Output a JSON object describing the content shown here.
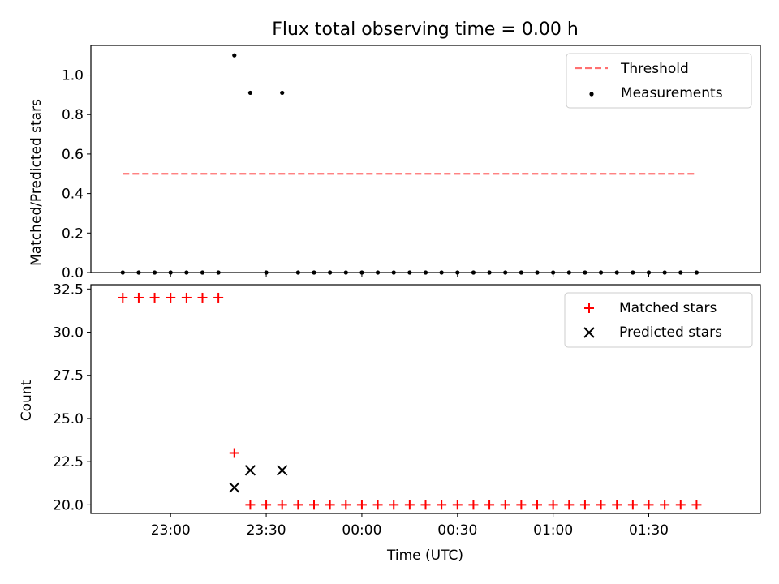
{
  "chart_data": [
    {
      "type": "scatter",
      "title": "Flux total observing time = 0.00 h",
      "ylabel": "Matched/Predicted stars",
      "xlabel": "",
      "xlim": [
        "22:35",
        "02:05"
      ],
      "ylim": [
        0,
        1.15
      ],
      "yticks": [
        "0.0",
        "0.2",
        "0.4",
        "0.6",
        "0.8",
        "1.0"
      ],
      "legend_position": "top-right",
      "grid": false,
      "series": [
        {
          "name": "Threshold",
          "style": "dashed-line",
          "color": "#ff7070",
          "x": [
            "22:45",
            "01:45"
          ],
          "y": [
            0.5,
            0.5
          ]
        },
        {
          "name": "Measurements",
          "style": "dot",
          "color": "#000000",
          "x": [
            "22:45",
            "22:50",
            "22:55",
            "23:00",
            "23:05",
            "23:10",
            "23:15",
            "23:20",
            "23:25",
            "23:30",
            "23:35",
            "23:40",
            "23:45",
            "23:50",
            "23:55",
            "00:00",
            "00:05",
            "00:10",
            "00:15",
            "00:20",
            "00:25",
            "00:30",
            "00:35",
            "00:40",
            "00:45",
            "00:50",
            "00:55",
            "01:00",
            "01:05",
            "01:10",
            "01:15",
            "01:20",
            "01:25",
            "01:30",
            "01:35",
            "01:40",
            "01:45"
          ],
          "y": [
            0,
            0,
            0,
            0,
            0,
            0,
            0,
            1.1,
            0.91,
            0,
            0.91,
            0,
            0,
            0,
            0,
            0,
            0,
            0,
            0,
            0,
            0,
            0,
            0,
            0,
            0,
            0,
            0,
            0,
            0,
            0,
            0,
            0,
            0,
            0,
            0,
            0,
            0
          ]
        }
      ]
    },
    {
      "type": "scatter",
      "title": "",
      "ylabel": "Count",
      "xlabel": "Time (UTC)",
      "xlim": [
        "22:35",
        "02:05"
      ],
      "xticks": [
        "23:00",
        "23:30",
        "00:00",
        "00:30",
        "01:00",
        "01:30"
      ],
      "ylim": [
        19.5,
        32.75
      ],
      "yticks": [
        "20.0",
        "22.5",
        "25.0",
        "27.5",
        "30.0",
        "32.5"
      ],
      "legend_position": "top-right",
      "grid": false,
      "series": [
        {
          "name": "Matched stars",
          "style": "plus",
          "color": "#ff0000",
          "x": [
            "22:45",
            "22:50",
            "22:55",
            "23:00",
            "23:05",
            "23:10",
            "23:15",
            "23:20",
            "23:25",
            "23:30",
            "23:35",
            "23:40",
            "23:45",
            "23:50",
            "23:55",
            "00:00",
            "00:05",
            "00:10",
            "00:15",
            "00:20",
            "00:25",
            "00:30",
            "00:35",
            "00:40",
            "00:45",
            "00:50",
            "00:55",
            "01:00",
            "01:05",
            "01:10",
            "01:15",
            "01:20",
            "01:25",
            "01:30",
            "01:35",
            "01:40",
            "01:45"
          ],
          "y": [
            32,
            32,
            32,
            32,
            32,
            32,
            32,
            23,
            20,
            20,
            20,
            20,
            20,
            20,
            20,
            20,
            20,
            20,
            20,
            20,
            20,
            20,
            20,
            20,
            20,
            20,
            20,
            20,
            20,
            20,
            20,
            20,
            20,
            20,
            20,
            20,
            20
          ]
        },
        {
          "name": "Predicted stars",
          "style": "x",
          "color": "#000000",
          "x": [
            "23:20",
            "23:25",
            "23:35"
          ],
          "y": [
            21,
            22,
            22
          ]
        }
      ]
    }
  ]
}
